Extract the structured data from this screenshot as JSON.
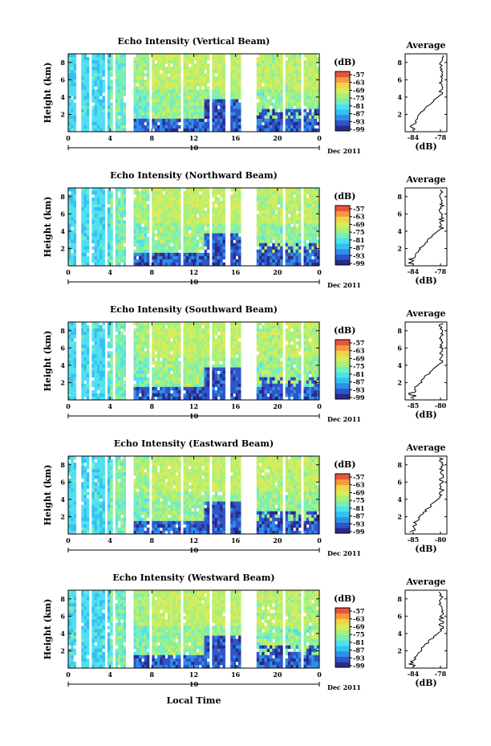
{
  "figure": {
    "xlabel": "Local Time",
    "month_label": "Dec 2011",
    "date_label": "10",
    "colorbar_unit": "(dB)",
    "colorbar_ticks": [
      "-57",
      "-63",
      "-69",
      "-75",
      "-81",
      "-87",
      "-93",
      "-99"
    ],
    "colorbar_colors": [
      "#2a2a8c",
      "#2f55c8",
      "#2f8fe6",
      "#35c0f0",
      "#4fe0f0",
      "#78eeb8",
      "#a8f07c",
      "#d6ec5c",
      "#f4d24a",
      "#f59a3e",
      "#e8553a"
    ],
    "profile_title": "Average",
    "profile_xlabel": "(dB)"
  },
  "chart_data": [
    {
      "type": "heatmap",
      "title": "Echo Intensity (Vertical Beam)",
      "ylabel": "Height (km)",
      "x_ticks": [
        "0",
        "4",
        "8",
        "12",
        "16",
        "20",
        "0"
      ],
      "y_ticks": [
        "8",
        "6",
        "4",
        "2"
      ],
      "profile_x_ticks": [
        "-84",
        "-78"
      ],
      "profile_y_ticks": [
        "8",
        "6",
        "4",
        "2"
      ]
    },
    {
      "type": "heatmap",
      "title": "Echo Intensity (Northward Beam)",
      "ylabel": "Height (km)",
      "x_ticks": [
        "0",
        "4",
        "8",
        "12",
        "16",
        "20",
        "0"
      ],
      "y_ticks": [
        "8",
        "6",
        "4",
        "2"
      ],
      "profile_x_ticks": [
        "-84",
        "-78"
      ],
      "profile_y_ticks": [
        "8",
        "6",
        "4",
        "2"
      ]
    },
    {
      "type": "heatmap",
      "title": "Echo Intensity (Southward Beam)",
      "ylabel": "Height (km)",
      "x_ticks": [
        "0",
        "4",
        "8",
        "12",
        "16",
        "20",
        "0"
      ],
      "y_ticks": [
        "8",
        "6",
        "4",
        "2"
      ],
      "profile_x_ticks": [
        "-85",
        "-80"
      ],
      "profile_y_ticks": [
        "8",
        "6",
        "4",
        "2"
      ]
    },
    {
      "type": "heatmap",
      "title": "Echo Intensity (Eastward Beam)",
      "ylabel": "Height (km)",
      "x_ticks": [
        "0",
        "4",
        "8",
        "12",
        "16",
        "20",
        "0"
      ],
      "y_ticks": [
        "8",
        "6",
        "4",
        "2"
      ],
      "profile_x_ticks": [
        "-85",
        "-80"
      ],
      "profile_y_ticks": [
        "8",
        "6",
        "4",
        "2"
      ]
    },
    {
      "type": "heatmap",
      "title": "Echo Intensity (Westward Beam)",
      "ylabel": "Height (km)",
      "x_ticks": [
        "0",
        "4",
        "8",
        "12",
        "16",
        "20",
        "0"
      ],
      "y_ticks": [
        "8",
        "6",
        "4",
        "2"
      ],
      "profile_x_ticks": [
        "-84",
        "-78"
      ],
      "profile_y_ticks": [
        "8",
        "6",
        "4",
        "2"
      ]
    }
  ]
}
